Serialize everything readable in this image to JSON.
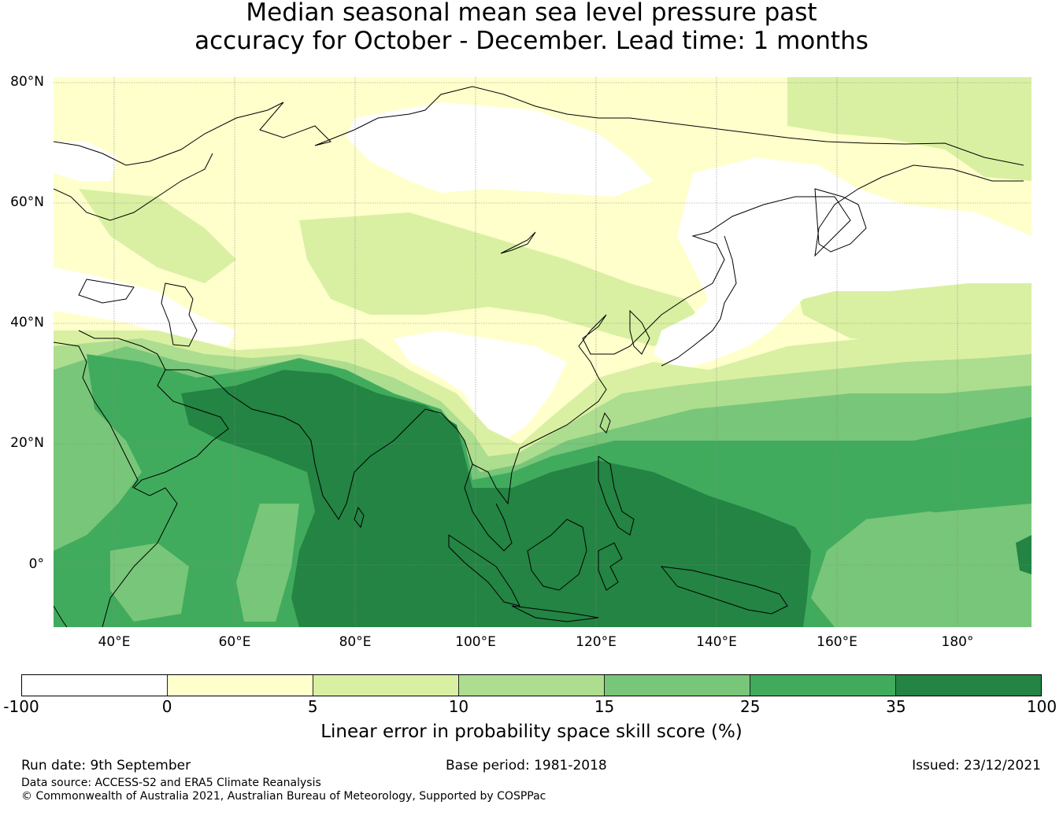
{
  "title_line1": "Median seasonal mean sea level pressure past",
  "title_line2": "accuracy for October - December. Lead time: 1 months",
  "lat_labels": [
    "80°N",
    "60°N",
    "40°N",
    "20°N",
    "0°"
  ],
  "lon_labels": [
    "40°E",
    "60°E",
    "80°E",
    "100°E",
    "120°E",
    "140°E",
    "160°E",
    "180°"
  ],
  "colorbar": {
    "ticks": [
      "-100",
      "0",
      "5",
      "10",
      "15",
      "25",
      "35",
      "100"
    ],
    "colors": [
      "#ffffff",
      "#ffffcc",
      "#d9f0a3",
      "#addd8e",
      "#78c679",
      "#41ab5d",
      "#238443"
    ],
    "label": "Linear error in probability space skill score (%)"
  },
  "footer": {
    "run_date": "Run date: 9th September",
    "base_period": "Base period: 1981-2018",
    "issued": "Issued: 23/12/2021",
    "data_source": "Data source: ACCESS-S2 and ERA5 Climate Reanalysis",
    "copyright": "© Commonwealth of Australia 2021, Australian Bureau of Meteorology, Supported by COSPPac"
  }
}
